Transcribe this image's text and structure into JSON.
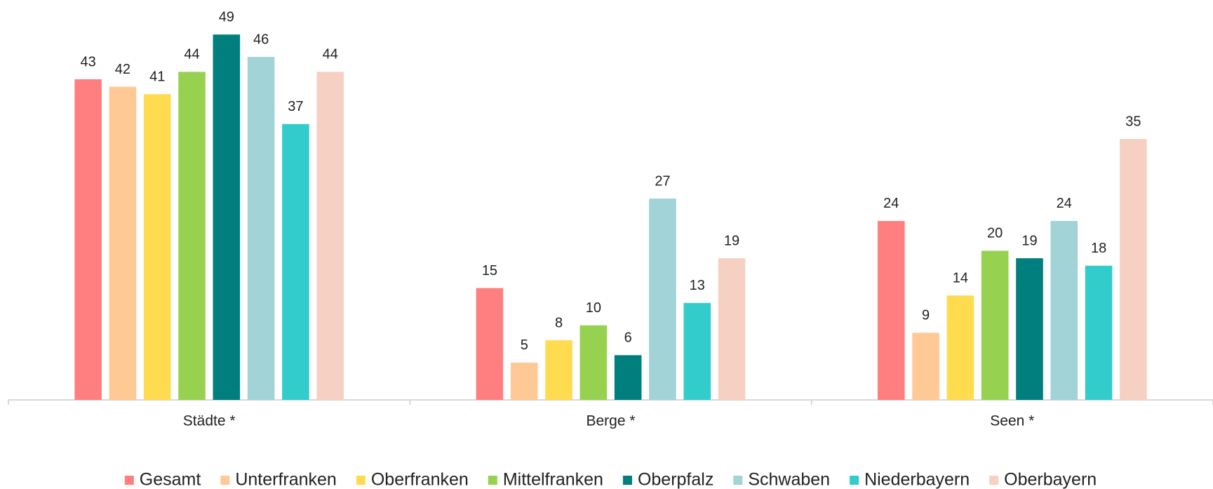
{
  "chart_data": {
    "type": "bar",
    "categories": [
      "Städte *",
      "Berge *",
      "Seen *"
    ],
    "ylim": [
      0,
      50
    ],
    "series": [
      {
        "name": "Gesamt",
        "color": "#ff7f80",
        "values": [
          43,
          15,
          24
        ]
      },
      {
        "name": "Unterfranken",
        "color": "#ffc996",
        "values": [
          42,
          5,
          9
        ]
      },
      {
        "name": "Oberfranken",
        "color": "#ffdb50",
        "values": [
          41,
          8,
          14
        ]
      },
      {
        "name": "Mittelfranken",
        "color": "#96d250",
        "values": [
          44,
          10,
          20
        ]
      },
      {
        "name": "Oberpfalz",
        "color": "#007f7e",
        "values": [
          49,
          6,
          19
        ]
      },
      {
        "name": "Schwaben",
        "color": "#a1d3d7",
        "values": [
          46,
          27,
          24
        ]
      },
      {
        "name": "Niederbayern",
        "color": "#33cccc",
        "values": [
          37,
          13,
          18
        ]
      },
      {
        "name": "Oberbayern",
        "color": "#f7d0c4",
        "values": [
          44,
          19,
          35
        ]
      }
    ]
  }
}
